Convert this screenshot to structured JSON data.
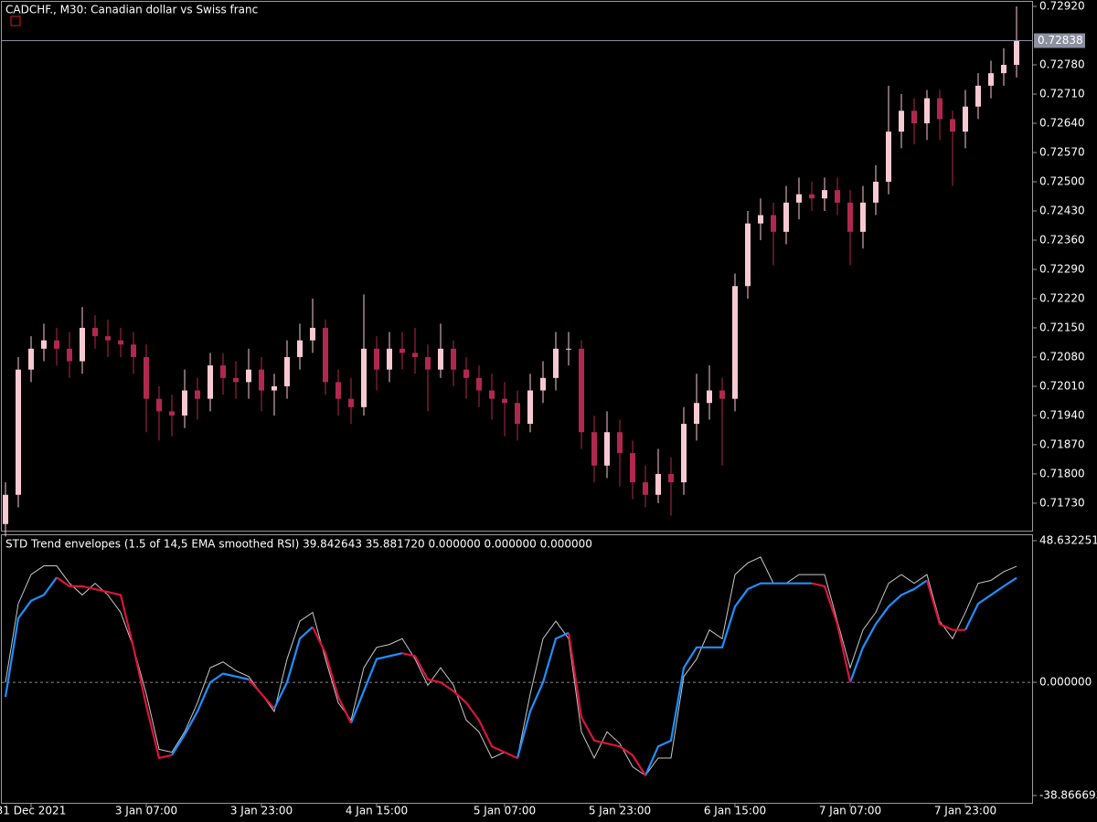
{
  "chart_data": [
    {
      "type": "candlestick",
      "title": "CADCHF., M30:  Canadian dollar vs Swiss franc",
      "up_color": "#f7c9d3",
      "down_color": "#b0284f",
      "open": [
        0.7168,
        0.7175,
        0.7205,
        0.721,
        0.7212,
        0.721,
        0.7207,
        0.7215,
        0.7213,
        0.7212,
        0.7211,
        0.7208,
        0.7198,
        0.7195,
        0.7194,
        0.72,
        0.7198,
        0.7206,
        0.7203,
        0.7202,
        0.7205,
        0.72,
        0.7201,
        0.7208,
        0.7212,
        0.7215,
        0.7202,
        0.7198,
        0.7196,
        0.721,
        0.7205,
        0.721,
        0.7209,
        0.7208,
        0.7205,
        0.721,
        0.7205,
        0.7203,
        0.72,
        0.7198,
        0.7197,
        0.7192,
        0.72,
        0.7203,
        0.721,
        0.721,
        0.719,
        0.7182,
        0.719,
        0.7185,
        0.7178,
        0.7175,
        0.718,
        0.7178,
        0.7192,
        0.7197,
        0.72,
        0.7198,
        0.7225,
        0.724,
        0.7242,
        0.7238,
        0.7245,
        0.7247,
        0.7246,
        0.7248,
        0.7245,
        0.7238,
        0.7245,
        0.725,
        0.7262,
        0.7267,
        0.7264,
        0.727,
        0.7265,
        0.7262,
        0.7268,
        0.7273,
        0.7276,
        0.7278
      ],
      "high": [
        0.7178,
        0.7208,
        0.7213,
        0.7216,
        0.7215,
        0.7214,
        0.722,
        0.7218,
        0.7217,
        0.7215,
        0.7214,
        0.7211,
        0.7201,
        0.7199,
        0.7205,
        0.7203,
        0.7209,
        0.7209,
        0.7207,
        0.721,
        0.7208,
        0.7204,
        0.7212,
        0.7216,
        0.7222,
        0.7217,
        0.7205,
        0.7203,
        0.7223,
        0.7213,
        0.7214,
        0.7214,
        0.7215,
        0.7211,
        0.7216,
        0.7212,
        0.7208,
        0.7206,
        0.7204,
        0.7202,
        0.72,
        0.7204,
        0.7207,
        0.7214,
        0.7214,
        0.7212,
        0.7194,
        0.7195,
        0.7193,
        0.7188,
        0.7182,
        0.7186,
        0.7184,
        0.7196,
        0.7204,
        0.7206,
        0.7203,
        0.7228,
        0.7243,
        0.7246,
        0.7245,
        0.7249,
        0.7251,
        0.725,
        0.7251,
        0.7251,
        0.7248,
        0.7249,
        0.7254,
        0.7273,
        0.7271,
        0.727,
        0.7272,
        0.7272,
        0.7267,
        0.7272,
        0.7276,
        0.7279,
        0.7282,
        0.7292
      ],
      "low": [
        0.7165,
        0.7172,
        0.7202,
        0.7207,
        0.7206,
        0.7203,
        0.7204,
        0.721,
        0.7208,
        0.7208,
        0.7204,
        0.719,
        0.7188,
        0.7189,
        0.7191,
        0.7193,
        0.7195,
        0.7199,
        0.7198,
        0.7198,
        0.7195,
        0.7194,
        0.7198,
        0.7205,
        0.7209,
        0.7199,
        0.7194,
        0.7192,
        0.7194,
        0.72,
        0.7202,
        0.7205,
        0.7204,
        0.7195,
        0.7203,
        0.7201,
        0.7198,
        0.7196,
        0.7193,
        0.7189,
        0.7188,
        0.719,
        0.7197,
        0.72,
        0.7206,
        0.7186,
        0.7178,
        0.7179,
        0.7177,
        0.7174,
        0.7172,
        0.7173,
        0.717,
        0.7175,
        0.7188,
        0.7193,
        0.7182,
        0.7195,
        0.7222,
        0.7236,
        0.723,
        0.7235,
        0.7241,
        0.7243,
        0.7243,
        0.7242,
        0.723,
        0.7234,
        0.7242,
        0.7247,
        0.7258,
        0.7259,
        0.726,
        0.726,
        0.7249,
        0.7258,
        0.7265,
        0.727,
        0.7273,
        0.7275
      ],
      "close": [
        0.7175,
        0.7205,
        0.721,
        0.7212,
        0.721,
        0.7207,
        0.7215,
        0.7213,
        0.7212,
        0.7211,
        0.7208,
        0.7198,
        0.7195,
        0.7194,
        0.72,
        0.7198,
        0.7206,
        0.7203,
        0.7202,
        0.7205,
        0.72,
        0.7201,
        0.7208,
        0.7212,
        0.7215,
        0.7202,
        0.7198,
        0.7196,
        0.721,
        0.7205,
        0.721,
        0.7209,
        0.7208,
        0.7205,
        0.721,
        0.7205,
        0.7203,
        0.72,
        0.7198,
        0.7197,
        0.7192,
        0.72,
        0.7203,
        0.721,
        0.721,
        0.719,
        0.7182,
        0.719,
        0.7185,
        0.7178,
        0.7175,
        0.718,
        0.7178,
        0.7192,
        0.7197,
        0.72,
        0.7198,
        0.7225,
        0.724,
        0.7242,
        0.7238,
        0.7245,
        0.7247,
        0.7246,
        0.7248,
        0.7245,
        0.7238,
        0.7245,
        0.725,
        0.7262,
        0.7267,
        0.7264,
        0.727,
        0.7265,
        0.7262,
        0.7268,
        0.7273,
        0.7276,
        0.7278,
        0.72838
      ],
      "last_price": 0.72838,
      "ylim": [
        0.71662,
        0.72931
      ],
      "yticks": [
        {
          "value": 0.7292,
          "label": "0.72920"
        },
        {
          "value": 0.7278,
          "label": "0.72780"
        },
        {
          "value": 0.7271,
          "label": "0.72710"
        },
        {
          "value": 0.7264,
          "label": "0.72640"
        },
        {
          "value": 0.7257,
          "label": "0.72570"
        },
        {
          "value": 0.725,
          "label": "0.72500"
        },
        {
          "value": 0.7243,
          "label": "0.72430"
        },
        {
          "value": 0.7236,
          "label": "0.72360"
        },
        {
          "value": 0.7229,
          "label": "0.72290"
        },
        {
          "value": 0.7222,
          "label": "0.72220"
        },
        {
          "value": 0.7215,
          "label": "0.72150"
        },
        {
          "value": 0.7208,
          "label": "0.72080"
        },
        {
          "value": 0.7201,
          "label": "0.72010"
        },
        {
          "value": 0.7194,
          "label": "0.71940"
        },
        {
          "value": 0.7187,
          "label": "0.71870"
        },
        {
          "value": 0.718,
          "label": "0.71800"
        },
        {
          "value": 0.7173,
          "label": "0.71730"
        }
      ]
    },
    {
      "type": "line",
      "title": "STD Trend envelopes (1.5 of 14,5 EMA smoothed RSI) 39.842643 35.881720 0.000000 0.000000 0.000000",
      "categories": [
        null,
        null,
        "31 Dec 2021",
        null,
        null,
        null,
        null,
        null,
        null,
        null,
        null,
        "3 Jan 07:00",
        null,
        null,
        null,
        null,
        null,
        null,
        null,
        null,
        "3 Jan 23:00",
        null,
        null,
        null,
        null,
        null,
        null,
        null,
        null,
        "4 Jan 15:00",
        null,
        null,
        null,
        null,
        null,
        null,
        null,
        null,
        null,
        "5 Jan 07:00",
        null,
        null,
        null,
        null,
        null,
        null,
        null,
        null,
        "5 Jan 23:00",
        null,
        null,
        null,
        null,
        null,
        null,
        null,
        null,
        "6 Jan 15:00",
        null,
        null,
        null,
        null,
        null,
        null,
        null,
        null,
        "7 Jan 07:00",
        null,
        null,
        null,
        null,
        null,
        null,
        null,
        null,
        "7 Jan 23:00",
        null,
        null,
        null,
        null
      ],
      "series": [
        {
          "color": "#c8c8c8",
          "width": 1,
          "values": [
            0,
            27,
            37,
            40,
            40,
            34,
            30,
            34,
            30,
            24,
            12,
            -4,
            -23,
            -24,
            -17,
            -7,
            5,
            7,
            4,
            2,
            -4,
            -10,
            8,
            21,
            24,
            8,
            -7,
            -13,
            5,
            12,
            13,
            15,
            8,
            -1,
            5,
            -1,
            -13,
            -17,
            -26,
            -24,
            -26,
            -4,
            15,
            21,
            15,
            -17,
            -26,
            -17,
            -21,
            -29,
            -32,
            -26,
            -26,
            2,
            8,
            18,
            15,
            37,
            41,
            43,
            34,
            34,
            37,
            37,
            37,
            21,
            5,
            18,
            24,
            34,
            37,
            34,
            37,
            21,
            15,
            24,
            34,
            35,
            38,
            39.842643
          ]
        },
        {
          "color": "#1e90ff",
          "width": 2.2,
          "values": [
            -5,
            22,
            28,
            30,
            36,
            null,
            null,
            null,
            null,
            null,
            null,
            null,
            null,
            -25,
            -18,
            -10,
            0,
            3,
            2,
            1,
            null,
            -9,
            0,
            15,
            19,
            null,
            null,
            -14,
            -3,
            8,
            9,
            10,
            null,
            null,
            null,
            null,
            null,
            null,
            null,
            null,
            -26,
            -10,
            0,
            15,
            17,
            null,
            null,
            null,
            null,
            null,
            -32,
            -22,
            -20,
            5,
            12,
            12,
            12,
            26,
            32,
            34,
            34,
            34,
            34,
            34,
            null,
            null,
            0,
            12,
            20,
            26,
            30,
            32,
            35,
            null,
            null,
            18,
            27,
            30,
            33,
            35.88172
          ]
        },
        {
          "color": "#dc143c",
          "width": 2.2,
          "values": [
            null,
            null,
            null,
            null,
            36,
            33,
            33,
            32,
            31,
            30,
            12,
            -8,
            -26,
            -25,
            null,
            null,
            null,
            null,
            null,
            1,
            -4,
            -9,
            null,
            null,
            19,
            10,
            -5,
            -14,
            null,
            null,
            null,
            10,
            9,
            1,
            0,
            -3,
            -7,
            -13,
            -22,
            -24,
            -26,
            null,
            null,
            null,
            17,
            -12,
            -20,
            -21,
            -22,
            -25,
            -32,
            null,
            null,
            null,
            null,
            null,
            null,
            null,
            null,
            null,
            null,
            null,
            null,
            34,
            33,
            20,
            0,
            null,
            null,
            null,
            null,
            null,
            35,
            20,
            18,
            18,
            null,
            null,
            null,
            null
          ]
        }
      ],
      "ylim": [
        -41.69,
        50.83
      ],
      "yticks": [
        48.632251,
        {
          "value": 0,
          "label": "0.000000"
        },
        -38.866693
      ],
      "zero_line": true
    }
  ]
}
